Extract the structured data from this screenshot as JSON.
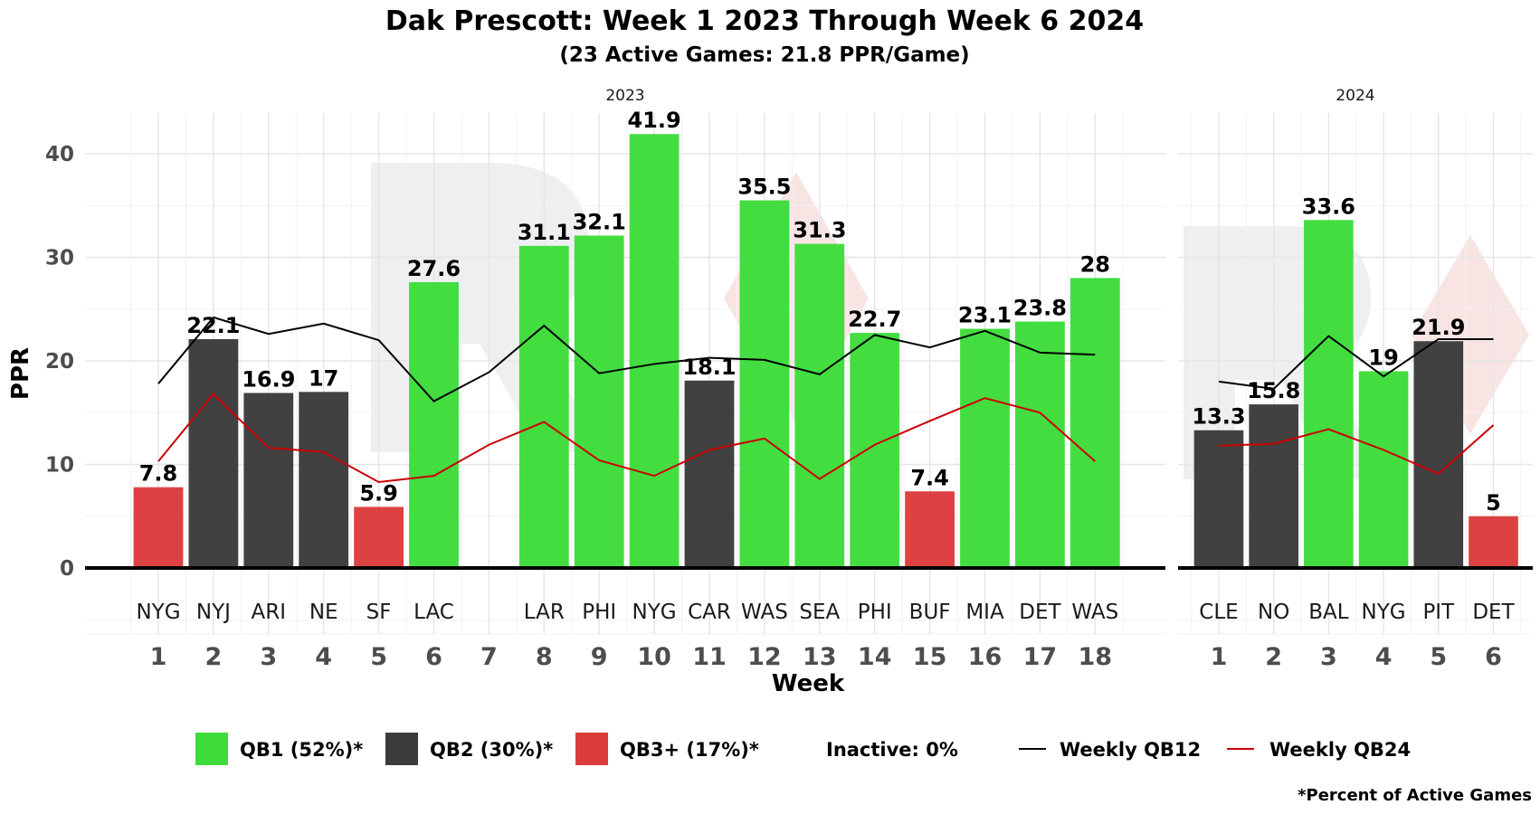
{
  "colors": {
    "QB1": "#3ddc3a",
    "QB2": "#3b3b3b",
    "QB3+": "#dc3b3b",
    "qb12_line": "#000000",
    "qb24_line": "#cc0000",
    "watermark_gray": "#d9dbe0",
    "watermark_red": "#f2c4c4"
  },
  "chart_data": {
    "type": "bar",
    "title": "Dak Prescott: Week 1 2023 Through Week 6 2024",
    "subtitle": "(23 Active Games: 21.8 PPR/Game)",
    "xlabel": "Week",
    "ylabel": "PPR",
    "ylim": [
      0,
      44
    ],
    "yticks": [
      0,
      10,
      20,
      30,
      40
    ],
    "facets": [
      {
        "label": "2023",
        "weeks": [
          1,
          2,
          3,
          4,
          5,
          6,
          7,
          8,
          9,
          10,
          11,
          12,
          13,
          14,
          15,
          16,
          17,
          18
        ],
        "opponents": [
          "NYG",
          "NYJ",
          "ARI",
          "NE",
          "SF",
          "LAC",
          "",
          "LAR",
          "PHI",
          "NYG",
          "CAR",
          "WAS",
          "SEA",
          "PHI",
          "BUF",
          "MIA",
          "DET",
          "WAS"
        ],
        "values": [
          7.8,
          22.1,
          16.9,
          17,
          5.9,
          27.6,
          null,
          31.1,
          32.1,
          41.9,
          18.1,
          35.5,
          31.3,
          22.7,
          7.4,
          23.1,
          23.8,
          28
        ],
        "tiers": [
          "QB3+",
          "QB2",
          "QB2",
          "QB2",
          "QB3+",
          "QB1",
          null,
          "QB1",
          "QB1",
          "QB1",
          "QB2",
          "QB1",
          "QB1",
          "QB1",
          "QB3+",
          "QB1",
          "QB1",
          "QB1"
        ],
        "qb12": [
          17.8,
          24.2,
          22.6,
          23.6,
          22.0,
          16.1,
          18.9,
          23.4,
          18.8,
          19.7,
          20.3,
          20.1,
          18.7,
          22.5,
          21.3,
          22.9,
          20.8,
          20.6
        ],
        "qb24": [
          10.3,
          16.8,
          11.6,
          11.2,
          8.3,
          8.9,
          11.9,
          14.1,
          10.4,
          8.9,
          11.4,
          12.5,
          8.6,
          11.9,
          14.2,
          16.4,
          15.0,
          10.3
        ]
      },
      {
        "label": "2024",
        "weeks": [
          1,
          2,
          3,
          4,
          5,
          6
        ],
        "opponents": [
          "CLE",
          "NO",
          "BAL",
          "NYG",
          "PIT",
          "DET"
        ],
        "values": [
          13.3,
          15.8,
          33.6,
          19,
          21.9,
          5
        ],
        "tiers": [
          "QB2",
          "QB2",
          "QB1",
          "QB1",
          "QB2",
          "QB3+"
        ],
        "qb12": [
          18.0,
          17.3,
          22.4,
          18.5,
          22.1,
          22.1
        ],
        "qb24": [
          11.8,
          12.0,
          13.4,
          11.4,
          9.1,
          13.8
        ]
      }
    ],
    "legend": {
      "position": "bottom",
      "items": [
        {
          "key": "QB1",
          "label": "QB1 (52%)*"
        },
        {
          "key": "QB2",
          "label": "QB2 (30%)*"
        },
        {
          "key": "QB3+",
          "label": "QB3+ (17%)*"
        }
      ],
      "inactive": "Inactive: 0%",
      "lines": [
        {
          "key": "qb12_line",
          "label": "Weekly QB12"
        },
        {
          "key": "qb24_line",
          "label": "Weekly QB24"
        }
      ]
    },
    "caption": "*Percent of Active Games"
  }
}
